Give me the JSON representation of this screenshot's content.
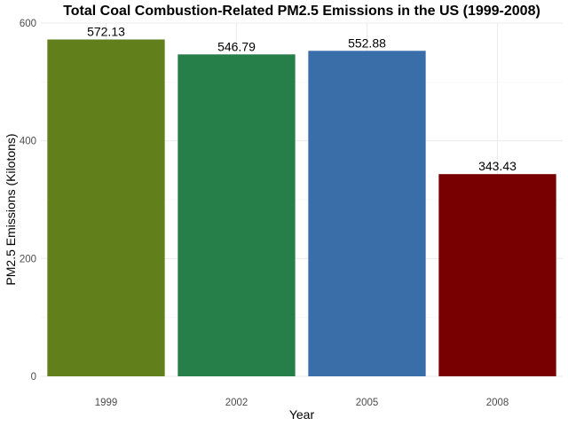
{
  "chart_data": {
    "type": "bar",
    "title": "Total Coal Combustion-Related PM2.5 Emissions in the US (1999-2008)",
    "xlabel": "Year",
    "ylabel": "PM2.5 Emissions (Kilotons)",
    "categories": [
      "1999",
      "2002",
      "2005",
      "2008"
    ],
    "values": [
      572.13,
      546.79,
      552.88,
      343.43
    ],
    "data_labels": [
      "572.13",
      "546.79",
      "552.88",
      "343.43"
    ],
    "colors": [
      "#61801c",
      "#267e48",
      "#396ea9",
      "#780000"
    ],
    "ylim": [
      0,
      600
    ],
    "yticks": [
      0,
      200,
      400,
      600
    ],
    "grid": true,
    "legend": "none"
  }
}
